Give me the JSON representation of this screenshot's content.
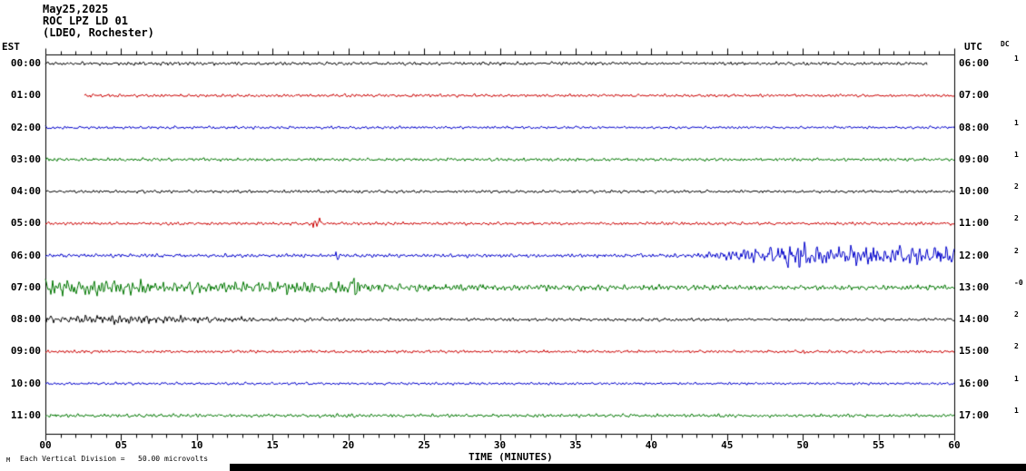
{
  "header": {
    "date": "May25,2025",
    "station": "ROC LPZ LD 01",
    "location": "(LDEO, Rochester)"
  },
  "axis": {
    "left_label": "EST",
    "right_label": "UTC",
    "dc_label": "DC",
    "x_title": "TIME (MINUTES)",
    "x_tick_labels": [
      "00",
      "05",
      "10",
      "15",
      "20",
      "25",
      "30",
      "35",
      "40",
      "45",
      "50",
      "55",
      "60"
    ],
    "footnote": "Each Vertical Division =   50.00 microvolts",
    "watermark": "M"
  },
  "chart_data": {
    "type": "line",
    "title": "ROC LPZ LD 01 helicorder record, May25,2025 (LDEO, Rochester)",
    "xlabel": "TIME (MINUTES)",
    "x_unit": "minutes",
    "x_range": [
      0,
      60
    ],
    "minutes_per_row": 60,
    "vertical_division_microvolts": 50.0,
    "grid": false,
    "colors": {
      "black": "#000000",
      "red": "#cc0000",
      "blue": "#0000cc",
      "green": "#007700"
    },
    "rows": [
      {
        "est": "00:00",
        "utc": "06:00",
        "dc": "1",
        "color": "black",
        "start_min": 0,
        "end_min": 58.2,
        "envelope": [
          [
            0,
            1.6
          ],
          [
            10,
            1.8
          ],
          [
            20,
            1.5
          ],
          [
            30,
            1.6
          ],
          [
            40,
            1.5
          ],
          [
            50,
            1.7
          ],
          [
            58.2,
            1.5
          ]
        ],
        "spikes": []
      },
      {
        "est": "01:00",
        "utc": "07:00",
        "dc": "",
        "color": "red",
        "start_min": 2.6,
        "end_min": 60,
        "envelope": [
          [
            2.6,
            1.5
          ],
          [
            30,
            1.45
          ],
          [
            60,
            1.4
          ]
        ],
        "spikes": []
      },
      {
        "est": "02:00",
        "utc": "08:00",
        "dc": "1",
        "color": "blue",
        "start_min": 0,
        "end_min": 60,
        "envelope": [
          [
            0,
            1.4
          ],
          [
            60,
            1.3
          ]
        ],
        "spikes": []
      },
      {
        "est": "03:00",
        "utc": "09:00",
        "dc": "1",
        "color": "green",
        "start_min": 0,
        "end_min": 60,
        "envelope": [
          [
            0,
            2.0
          ],
          [
            3,
            1.6
          ],
          [
            60,
            1.5
          ]
        ],
        "spikes": []
      },
      {
        "est": "04:00",
        "utc": "10:00",
        "dc": "2",
        "color": "black",
        "start_min": 0,
        "end_min": 60,
        "envelope": [
          [
            0,
            1.5
          ],
          [
            60,
            1.4
          ]
        ],
        "spikes": []
      },
      {
        "est": "05:00",
        "utc": "11:00",
        "dc": "2",
        "color": "red",
        "start_min": 0,
        "end_min": 60,
        "envelope": [
          [
            0,
            1.5
          ],
          [
            60,
            1.5
          ]
        ],
        "spikes": [
          {
            "min": 17.7,
            "amp": 3.0
          },
          {
            "min": 18.1,
            "amp": 4.5
          }
        ]
      },
      {
        "est": "06:00",
        "utc": "12:00",
        "dc": "2",
        "color": "blue",
        "start_min": 0,
        "end_min": 60,
        "envelope": [
          [
            0,
            1.7
          ],
          [
            40,
            1.8
          ],
          [
            42,
            2.2
          ],
          [
            44,
            3.5
          ],
          [
            45,
            5.0
          ],
          [
            46,
            6.0
          ],
          [
            47,
            6.5
          ],
          [
            48,
            8.0
          ],
          [
            49,
            10.0
          ],
          [
            50,
            13.0
          ],
          [
            51,
            12.0
          ],
          [
            51.8,
            9.0
          ],
          [
            52.5,
            8.0
          ],
          [
            53.5,
            9.5
          ],
          [
            54.5,
            7.5
          ],
          [
            55.5,
            7.0
          ],
          [
            56.5,
            9.0
          ],
          [
            57.5,
            7.5
          ],
          [
            58.5,
            9.0
          ],
          [
            60,
            8.0
          ]
        ],
        "spikes": [
          {
            "min": 19.3,
            "amp": 6.0
          }
        ]
      },
      {
        "est": "07:00",
        "utc": "13:00",
        "dc": "-0",
        "color": "green",
        "start_min": 0,
        "end_min": 60,
        "envelope": [
          [
            0,
            8.5
          ],
          [
            1.5,
            9.0
          ],
          [
            3,
            7.5
          ],
          [
            5,
            7.0
          ],
          [
            8,
            6.5
          ],
          [
            11,
            6.0
          ],
          [
            14,
            5.5
          ],
          [
            17,
            5.5
          ],
          [
            19.5,
            6.0
          ],
          [
            20.3,
            8.0
          ],
          [
            21,
            4.5
          ],
          [
            23,
            4.0
          ],
          [
            26,
            3.5
          ],
          [
            30,
            3.2
          ],
          [
            35,
            2.9
          ],
          [
            40,
            2.7
          ],
          [
            50,
            2.5
          ],
          [
            60,
            2.4
          ]
        ],
        "spikes": [
          {
            "min": 20.4,
            "amp": 9.0
          }
        ]
      },
      {
        "est": "08:00",
        "utc": "14:00",
        "dc": "2",
        "color": "black",
        "start_min": 0,
        "end_min": 60,
        "envelope": [
          [
            0,
            3.2
          ],
          [
            2,
            3.8
          ],
          [
            5,
            4.4
          ],
          [
            8,
            3.6
          ],
          [
            11,
            3.0
          ],
          [
            14,
            2.4
          ],
          [
            17,
            1.9
          ],
          [
            22,
            1.7
          ],
          [
            30,
            1.6
          ],
          [
            60,
            1.5
          ]
        ],
        "spikes": []
      },
      {
        "est": "09:00",
        "utc": "15:00",
        "dc": "2",
        "color": "red",
        "start_min": 0,
        "end_min": 60,
        "envelope": [
          [
            0,
            1.4
          ],
          [
            60,
            1.4
          ]
        ],
        "spikes": [
          {
            "min": 50.2,
            "amp": 2.5
          }
        ]
      },
      {
        "est": "10:00",
        "utc": "16:00",
        "dc": "1",
        "color": "blue",
        "start_min": 0,
        "end_min": 60,
        "envelope": [
          [
            0,
            1.3
          ],
          [
            60,
            1.2
          ]
        ],
        "spikes": []
      },
      {
        "est": "11:00",
        "utc": "17:00",
        "dc": "1",
        "color": "green",
        "start_min": 0,
        "end_min": 60,
        "envelope": [
          [
            0,
            1.8
          ],
          [
            60,
            1.5
          ]
        ],
        "spikes": []
      }
    ]
  }
}
